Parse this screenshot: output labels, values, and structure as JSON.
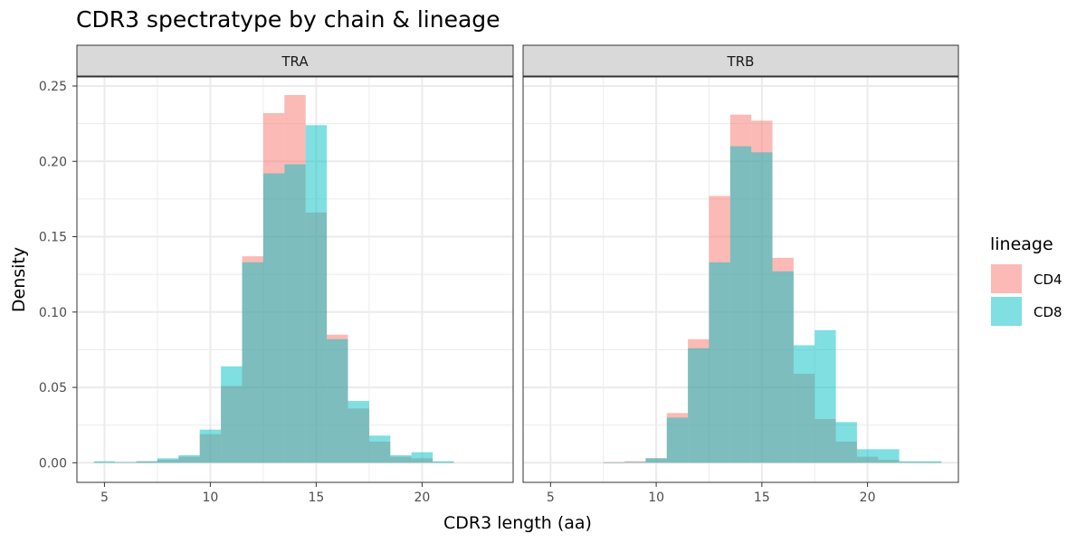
{
  "chart_data": {
    "type": "bar",
    "title": "CDR3 spectratype by chain & lineage",
    "xlabel": "CDR3 length (aa)",
    "ylabel": "Density",
    "xlim": [
      3.7,
      24.3
    ],
    "ylim": [
      -0.013,
      0.256
    ],
    "x_ticks": [
      5,
      10,
      15,
      20
    ],
    "y_ticks": [
      0,
      0.05,
      0.1,
      0.15,
      0.2,
      0.25
    ],
    "y_tick_labels": [
      "0.00",
      "0.05",
      "0.10",
      "0.15",
      "0.20",
      "0.25"
    ],
    "bin_width": 1,
    "grid": true,
    "legend": {
      "title": "lineage",
      "position": "right",
      "entries": [
        "CD4",
        "CD8"
      ]
    },
    "colors": {
      "CD4": "#F8766D",
      "CD8": "#00BFC4",
      "strip_background": "#D9D9D9",
      "grid": "#EBEBEB",
      "frame": "#333333"
    },
    "bar_opacity": 0.5,
    "panels": [
      {
        "label": "TRA",
        "series": [
          {
            "name": "CD4",
            "x": [
              5,
              6,
              7,
              8,
              9,
              10,
              11,
              12,
              13,
              14,
              15,
              16,
              17,
              18,
              19,
              20,
              21
            ],
            "values": [
              0.0005,
              0.0005,
              0.001,
              0.002,
              0.004,
              0.019,
              0.051,
              0.137,
              0.232,
              0.244,
              0.166,
              0.085,
              0.036,
              0.014,
              0.004,
              0.003,
              0.0005
            ]
          },
          {
            "name": "CD8",
            "x": [
              5,
              6,
              7,
              8,
              9,
              10,
              11,
              12,
              13,
              14,
              15,
              16,
              17,
              18,
              19,
              20,
              21
            ],
            "values": [
              0.001,
              0.0005,
              0.001,
              0.003,
              0.005,
              0.022,
              0.064,
              0.133,
              0.192,
              0.198,
              0.224,
              0.082,
              0.041,
              0.018,
              0.005,
              0.007,
              0.001
            ]
          }
        ]
      },
      {
        "label": "TRB",
        "series": [
          {
            "name": "CD4",
            "x": [
              8,
              9,
              10,
              11,
              12,
              13,
              14,
              15,
              16,
              17,
              18,
              19,
              20,
              21,
              22,
              23
            ],
            "values": [
              0.0005,
              0.001,
              0.003,
              0.033,
              0.082,
              0.177,
              0.231,
              0.227,
              0.136,
              0.059,
              0.029,
              0.014,
              0.004,
              0.002,
              0.0005,
              0.0005
            ]
          },
          {
            "name": "CD8",
            "x": [
              8,
              9,
              10,
              11,
              12,
              13,
              14,
              15,
              16,
              17,
              18,
              19,
              20,
              21,
              22,
              23
            ],
            "values": [
              0.0002,
              0.0005,
              0.003,
              0.03,
              0.076,
              0.133,
              0.21,
              0.206,
              0.127,
              0.078,
              0.088,
              0.027,
              0.009,
              0.009,
              0.001,
              0.001
            ]
          }
        ]
      }
    ]
  }
}
